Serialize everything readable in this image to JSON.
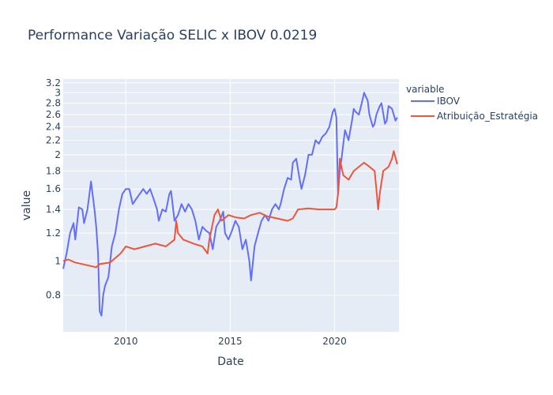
{
  "chart_data": {
    "type": "line",
    "title": "Performance Variação SELIC x IBOV 0.0219",
    "xlabel": "Date",
    "ylabel": "value",
    "yscale": "log",
    "xlim": [
      "2007-01-01",
      "2023-01-31"
    ],
    "ylim": [
      0.63,
      3.28
    ],
    "x_ticks": [
      "2010",
      "2015",
      "2020"
    ],
    "y_ticks": [
      "0.8",
      "1",
      "1.2",
      "1.4",
      "1.6",
      "1.8",
      "2",
      "2.2",
      "2.4",
      "2.6",
      "2.8",
      "3",
      "3.2"
    ],
    "grid": true,
    "legend": {
      "title": "variable",
      "placement": "right"
    },
    "colors": {
      "IBOV": "#636efa",
      "Atribuição_Estratégia": "#ef553b",
      "plot_bg": "#e5ecf6"
    },
    "series": [
      {
        "name": "IBOV",
        "points": [
          [
            "2007-01",
            0.95
          ],
          [
            "2007-03",
            1.05
          ],
          [
            "2007-05",
            1.2
          ],
          [
            "2007-07",
            1.28
          ],
          [
            "2007-08",
            1.15
          ],
          [
            "2007-10",
            1.42
          ],
          [
            "2007-12",
            1.4
          ],
          [
            "2008-01",
            1.28
          ],
          [
            "2008-03",
            1.4
          ],
          [
            "2008-05",
            1.68
          ],
          [
            "2008-07",
            1.4
          ],
          [
            "2008-08",
            1.25
          ],
          [
            "2008-09",
            1.05
          ],
          [
            "2008-10",
            0.72
          ],
          [
            "2008-11",
            0.7
          ],
          [
            "2008-12",
            0.8
          ],
          [
            "2009-01",
            0.85
          ],
          [
            "2009-03",
            0.9
          ],
          [
            "2009-05",
            1.1
          ],
          [
            "2009-07",
            1.2
          ],
          [
            "2009-09",
            1.4
          ],
          [
            "2009-11",
            1.55
          ],
          [
            "2010-01",
            1.6
          ],
          [
            "2010-03",
            1.6
          ],
          [
            "2010-05",
            1.45
          ],
          [
            "2010-07",
            1.5
          ],
          [
            "2010-09",
            1.55
          ],
          [
            "2010-11",
            1.6
          ],
          [
            "2011-01",
            1.55
          ],
          [
            "2011-03",
            1.6
          ],
          [
            "2011-05",
            1.5
          ],
          [
            "2011-07",
            1.4
          ],
          [
            "2011-08",
            1.3
          ],
          [
            "2011-10",
            1.4
          ],
          [
            "2011-12",
            1.38
          ],
          [
            "2012-02",
            1.55
          ],
          [
            "2012-03",
            1.58
          ],
          [
            "2012-05",
            1.3
          ],
          [
            "2012-07",
            1.35
          ],
          [
            "2012-09",
            1.45
          ],
          [
            "2012-11",
            1.38
          ],
          [
            "2013-01",
            1.45
          ],
          [
            "2013-03",
            1.4
          ],
          [
            "2013-05",
            1.3
          ],
          [
            "2013-07",
            1.15
          ],
          [
            "2013-09",
            1.25
          ],
          [
            "2013-11",
            1.22
          ],
          [
            "2014-01",
            1.2
          ],
          [
            "2014-03",
            1.08
          ],
          [
            "2014-05",
            1.25
          ],
          [
            "2014-07",
            1.3
          ],
          [
            "2014-09",
            1.38
          ],
          [
            "2014-10",
            1.2
          ],
          [
            "2014-12",
            1.15
          ],
          [
            "2015-02",
            1.22
          ],
          [
            "2015-04",
            1.3
          ],
          [
            "2015-06",
            1.25
          ],
          [
            "2015-08",
            1.08
          ],
          [
            "2015-10",
            1.15
          ],
          [
            "2015-12",
            1.0
          ],
          [
            "2016-01",
            0.88
          ],
          [
            "2016-03",
            1.1
          ],
          [
            "2016-05",
            1.2
          ],
          [
            "2016-07",
            1.3
          ],
          [
            "2016-09",
            1.35
          ],
          [
            "2016-11",
            1.3
          ],
          [
            "2017-01",
            1.4
          ],
          [
            "2017-03",
            1.45
          ],
          [
            "2017-05",
            1.4
          ],
          [
            "2017-06",
            1.45
          ],
          [
            "2017-08",
            1.6
          ],
          [
            "2017-10",
            1.72
          ],
          [
            "2017-12",
            1.7
          ],
          [
            "2018-01",
            1.9
          ],
          [
            "2018-03",
            1.95
          ],
          [
            "2018-05",
            1.7
          ],
          [
            "2018-06",
            1.6
          ],
          [
            "2018-08",
            1.75
          ],
          [
            "2018-10",
            2.0
          ],
          [
            "2018-12",
            2.0
          ],
          [
            "2019-02",
            2.2
          ],
          [
            "2019-04",
            2.15
          ],
          [
            "2019-06",
            2.25
          ],
          [
            "2019-08",
            2.3
          ],
          [
            "2019-10",
            2.4
          ],
          [
            "2019-12",
            2.65
          ],
          [
            "2020-01",
            2.7
          ],
          [
            "2020-02",
            2.55
          ],
          [
            "2020-03",
            1.55
          ],
          [
            "2020-04",
            1.8
          ],
          [
            "2020-05",
            1.95
          ],
          [
            "2020-07",
            2.35
          ],
          [
            "2020-09",
            2.2
          ],
          [
            "2020-11",
            2.5
          ],
          [
            "2020-12",
            2.7
          ],
          [
            "2021-01",
            2.65
          ],
          [
            "2021-03",
            2.6
          ],
          [
            "2021-05",
            2.85
          ],
          [
            "2021-06",
            3.0
          ],
          [
            "2021-08",
            2.85
          ],
          [
            "2021-09",
            2.6
          ],
          [
            "2021-11",
            2.4
          ],
          [
            "2021-12",
            2.45
          ],
          [
            "2022-01",
            2.6
          ],
          [
            "2022-03",
            2.75
          ],
          [
            "2022-04",
            2.8
          ],
          [
            "2022-06",
            2.45
          ],
          [
            "2022-07",
            2.5
          ],
          [
            "2022-08",
            2.75
          ],
          [
            "2022-10",
            2.7
          ],
          [
            "2022-11",
            2.6
          ],
          [
            "2022-12",
            2.5
          ],
          [
            "2023-01",
            2.55
          ]
        ]
      },
      {
        "name": "Atribuição_Estratégia",
        "points": [
          [
            "2007-01",
            1.0
          ],
          [
            "2007-04",
            1.01
          ],
          [
            "2007-08",
            0.99
          ],
          [
            "2007-12",
            0.98
          ],
          [
            "2008-04",
            0.97
          ],
          [
            "2008-08",
            0.96
          ],
          [
            "2008-10",
            0.98
          ],
          [
            "2009-04",
            0.99
          ],
          [
            "2009-10",
            1.05
          ],
          [
            "2010-01",
            1.1
          ],
          [
            "2010-06",
            1.08
          ],
          [
            "2010-12",
            1.1
          ],
          [
            "2011-06",
            1.12
          ],
          [
            "2011-12",
            1.1
          ],
          [
            "2012-05",
            1.15
          ],
          [
            "2012-06",
            1.3
          ],
          [
            "2012-07",
            1.2
          ],
          [
            "2012-10",
            1.15
          ],
          [
            "2013-04",
            1.12
          ],
          [
            "2013-09",
            1.1
          ],
          [
            "2013-12",
            1.05
          ],
          [
            "2014-01",
            1.15
          ],
          [
            "2014-04",
            1.35
          ],
          [
            "2014-06",
            1.4
          ],
          [
            "2014-08",
            1.3
          ],
          [
            "2014-12",
            1.35
          ],
          [
            "2015-04",
            1.33
          ],
          [
            "2015-09",
            1.32
          ],
          [
            "2016-01",
            1.35
          ],
          [
            "2016-06",
            1.37
          ],
          [
            "2016-10",
            1.34
          ],
          [
            "2017-04",
            1.32
          ],
          [
            "2017-10",
            1.3
          ],
          [
            "2018-01",
            1.32
          ],
          [
            "2018-04",
            1.4
          ],
          [
            "2018-10",
            1.41
          ],
          [
            "2019-04",
            1.4
          ],
          [
            "2019-10",
            1.4
          ],
          [
            "2020-01",
            1.4
          ],
          [
            "2020-02",
            1.42
          ],
          [
            "2020-03",
            1.55
          ],
          [
            "2020-04",
            1.95
          ],
          [
            "2020-06",
            1.75
          ],
          [
            "2020-09",
            1.7
          ],
          [
            "2020-12",
            1.8
          ],
          [
            "2021-03",
            1.85
          ],
          [
            "2021-06",
            1.9
          ],
          [
            "2021-09",
            1.85
          ],
          [
            "2021-12",
            1.8
          ],
          [
            "2022-01",
            1.6
          ],
          [
            "2022-02",
            1.4
          ],
          [
            "2022-03",
            1.55
          ],
          [
            "2022-05",
            1.8
          ],
          [
            "2022-08",
            1.85
          ],
          [
            "2022-10",
            1.95
          ],
          [
            "2022-11",
            2.05
          ],
          [
            "2023-01",
            1.88
          ]
        ]
      }
    ]
  }
}
